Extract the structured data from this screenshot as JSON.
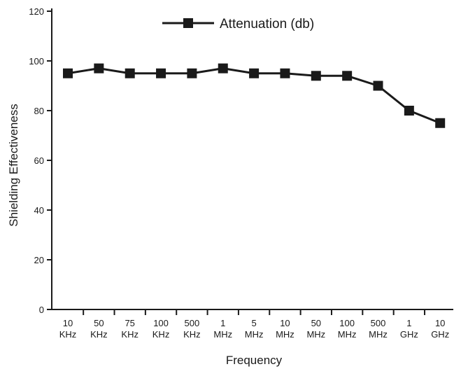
{
  "chart_data": {
    "type": "line",
    "xlabel": "Frequency",
    "ylabel": "Shielding Effectiveness",
    "ylim": [
      0,
      120
    ],
    "yticks": [
      "0",
      "20",
      "40",
      "60",
      "80",
      "100",
      "120"
    ],
    "categories": [
      [
        "10",
        "KHz"
      ],
      [
        "50",
        "KHz"
      ],
      [
        "75",
        "KHz"
      ],
      [
        "100",
        "KHz"
      ],
      [
        "500",
        "KHz"
      ],
      [
        "1",
        "MHz"
      ],
      [
        "5",
        "MHz"
      ],
      [
        "10",
        "MHz"
      ],
      [
        "50",
        "MHz"
      ],
      [
        "100",
        "MHz"
      ],
      [
        "500",
        "MHz"
      ],
      [
        "1",
        "GHz"
      ],
      [
        "10",
        "GHz"
      ]
    ],
    "series": [
      {
        "name": "Attenuation (db)",
        "values": [
          95,
          97,
          95,
          95,
          95,
          97,
          95,
          95,
          94,
          94,
          90,
          80,
          75
        ],
        "color": "#1a1a1a",
        "marker": "square"
      }
    ],
    "legend": {
      "position": "top-center"
    },
    "grid": false
  }
}
